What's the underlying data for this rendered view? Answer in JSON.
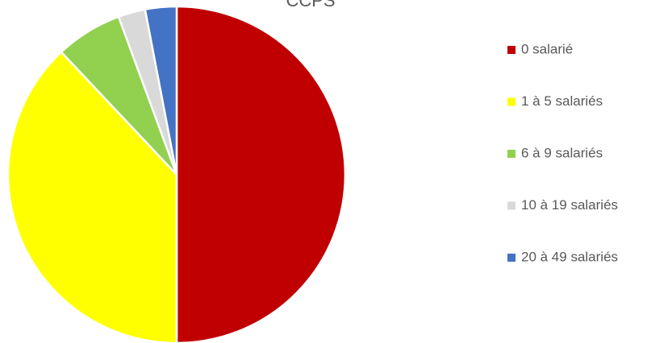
{
  "chart_data": {
    "type": "pie",
    "title": "CCPS",
    "categories": [
      "0 salarié",
      "1 à 5 salariés",
      "6 à 9 salariés",
      "10 à 19 salariés",
      "20 à 49 salariés"
    ],
    "values": [
      50,
      38,
      6.4,
      2.6,
      3
    ],
    "colors": [
      "#c00000",
      "#ffff00",
      "#92d050",
      "#d9d9d9",
      "#4472c4"
    ],
    "legend": "right"
  }
}
